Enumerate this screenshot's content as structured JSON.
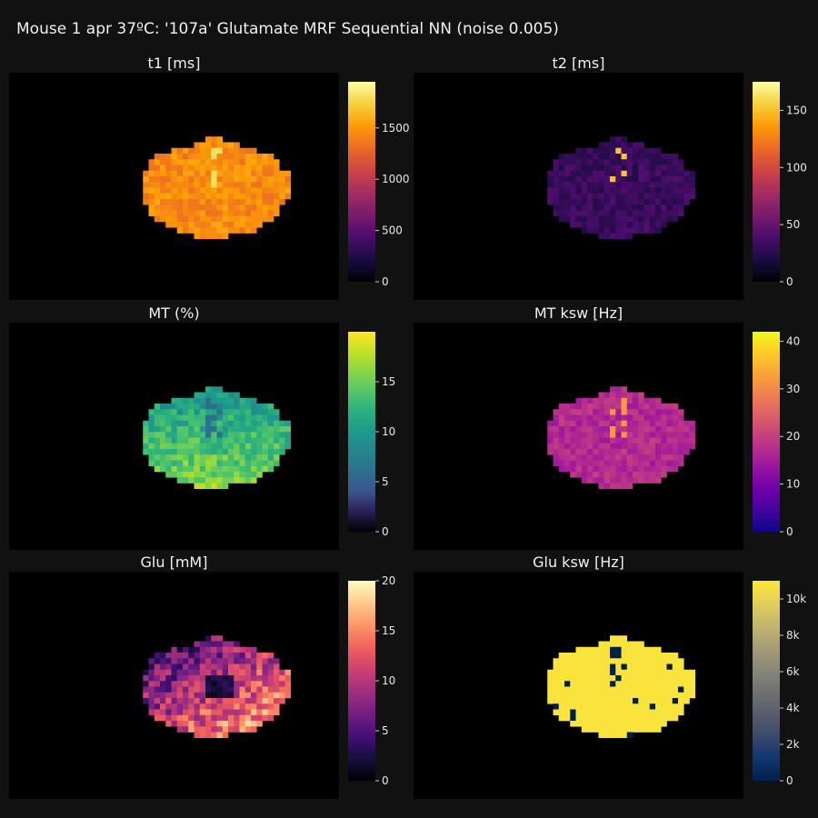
{
  "title": "Mouse 1 apr 37ºC: '107a' Glutamate MRF Sequential NN (noise 0.005)",
  "colors": {
    "background": "#111111",
    "plot_bg": "#000000"
  },
  "chart_data": [
    {
      "type": "heatmap",
      "title": "t1 [ms]",
      "colorscale": "inferno",
      "colorbar": {
        "range": [
          0,
          1950
        ],
        "ticks": [
          0,
          500,
          1000,
          1500
        ],
        "ticktext": [
          "0",
          "500",
          "1000",
          "1500"
        ]
      },
      "tissue_value": 1450,
      "tissue_spread": 120,
      "hotspot_value": 1800,
      "z_summary": "approx. 1300-1850 ms inside brain mask, 0 outside"
    },
    {
      "type": "heatmap",
      "title": "t2 [ms]",
      "colorscale": "inferno",
      "colorbar": {
        "range": [
          0,
          175
        ],
        "ticks": [
          0,
          50,
          100,
          150
        ],
        "ticktext": [
          "0",
          "50",
          "100",
          "150"
        ]
      },
      "tissue_value": 32,
      "tissue_spread": 10,
      "hotspot_value": 150,
      "z_summary": "approx. 20-45 ms inside brain mask, bright spots to ~170 ms"
    },
    {
      "type": "heatmap",
      "title": "MT (%)",
      "colorscale": "viridis",
      "colorbar": {
        "range": [
          0,
          20
        ],
        "ticks": [
          0,
          5,
          10,
          15
        ],
        "ticktext": [
          "0",
          "5",
          "10",
          "15"
        ]
      },
      "tissue_value": 11,
      "tissue_spread": 3,
      "hotspot_value": 6,
      "z_summary": "approx. 6-18 % inside brain mask"
    },
    {
      "type": "heatmap",
      "title": "MT ksw [Hz]",
      "colorscale": "plasma",
      "colorbar": {
        "range": [
          0,
          42
        ],
        "ticks": [
          0,
          10,
          20,
          30,
          40
        ],
        "ticktext": [
          "0",
          "10",
          "20",
          "30",
          "40"
        ]
      },
      "tissue_value": 17,
      "tissue_spread": 3,
      "hotspot_value": 32,
      "z_summary": "approx. 12-35 Hz inside brain mask"
    },
    {
      "type": "heatmap",
      "title": "Glu [mM]",
      "colorscale": "magma",
      "colorbar": {
        "range": [
          0,
          20
        ],
        "ticks": [
          0,
          5,
          10,
          15,
          20
        ],
        "ticktext": [
          "0",
          "5",
          "10",
          "15",
          "20"
        ]
      },
      "tissue_value": 9,
      "tissue_spread": 6,
      "hotspot_value": 18,
      "z_summary": "approx. 2-20 mM inside brain mask, higher in lower-right region"
    },
    {
      "type": "heatmap",
      "title": "Glu ksw [Hz]",
      "colorscale": "cividis",
      "colorbar": {
        "range": [
          0,
          11000
        ],
        "ticks": [
          0,
          2000,
          4000,
          6000,
          8000,
          10000
        ],
        "ticktext": [
          "0",
          "2k",
          "4k",
          "6k",
          "8k",
          "10k"
        ]
      },
      "tissue_value": 10800,
      "tissue_spread": 0,
      "hotspot_value": 0,
      "z_summary": "approx. 10.8k Hz nearly uniform inside mask, a few 0 voxels"
    }
  ]
}
